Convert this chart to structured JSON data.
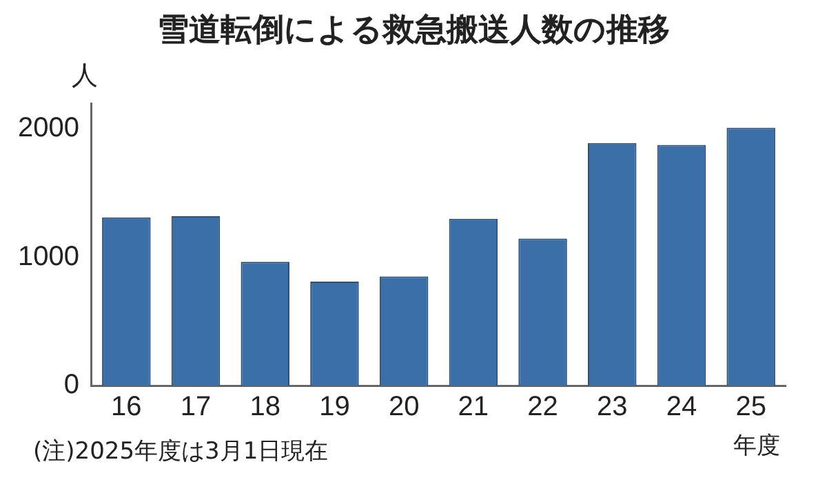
{
  "chart_data": {
    "type": "bar",
    "title": "雪道転倒による救急搬送人数の推移",
    "ylabel": "人",
    "xlabel": "年度",
    "categories": [
      "16",
      "17",
      "18",
      "19",
      "20",
      "21",
      "22",
      "23",
      "24",
      "25"
    ],
    "values": [
      1310,
      1320,
      965,
      810,
      850,
      1300,
      1145,
      1890,
      1875,
      2010
    ],
    "color": "#3a6fa8",
    "ylim": [
      0,
      2200
    ],
    "yticks": [
      0,
      1000,
      2000
    ],
    "grid": false,
    "annotations": [
      "(注)2025年度は3月1日現在"
    ]
  }
}
